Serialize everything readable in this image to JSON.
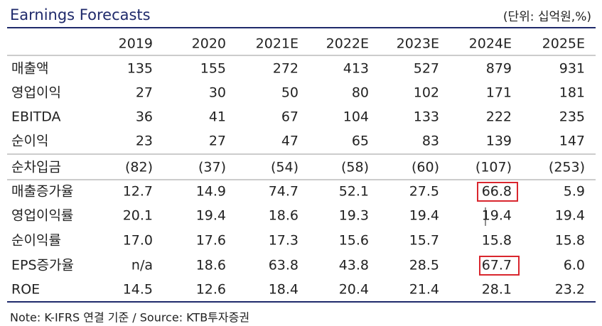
{
  "header": {
    "title": "Earnings Forecasts",
    "unit": "(단위: 십억원,%)"
  },
  "table": {
    "columns": [
      "2019",
      "2020",
      "2021E",
      "2022E",
      "2023E",
      "2024E",
      "2025E"
    ],
    "rows": [
      [
        "매출액",
        "135",
        "155",
        "272",
        "413",
        "527",
        "879",
        "931"
      ],
      [
        "영업이익",
        "27",
        "30",
        "50",
        "80",
        "102",
        "171",
        "181"
      ],
      [
        "EBITDA",
        "36",
        "41",
        "67",
        "104",
        "133",
        "222",
        "235"
      ],
      [
        "순이익",
        "23",
        "27",
        "47",
        "65",
        "83",
        "139",
        "147"
      ],
      [
        "순차입금",
        "(82)",
        "(37)",
        "(54)",
        "(58)",
        "(60)",
        "(107)",
        "(253)"
      ],
      [
        "매출증가율",
        "12.7",
        "14.9",
        "74.7",
        "52.1",
        "27.5",
        "66.8",
        "5.9"
      ],
      [
        "영업이익률",
        "20.1",
        "19.4",
        "18.6",
        "19.3",
        "19.4",
        "19.4",
        "19.4"
      ],
      [
        "순이익률",
        "17.0",
        "17.6",
        "17.3",
        "15.6",
        "15.7",
        "15.8",
        "15.8"
      ],
      [
        "EPS증가율",
        "n/a",
        "18.6",
        "63.8",
        "43.8",
        "28.5",
        "67.7",
        "6.0"
      ],
      [
        "ROE",
        "14.5",
        "12.6",
        "18.4",
        "20.4",
        "21.4",
        "28.1",
        "23.2"
      ]
    ]
  },
  "note": "Note: K-IFRS 연결 기준 / Source: KTB투자증권"
}
